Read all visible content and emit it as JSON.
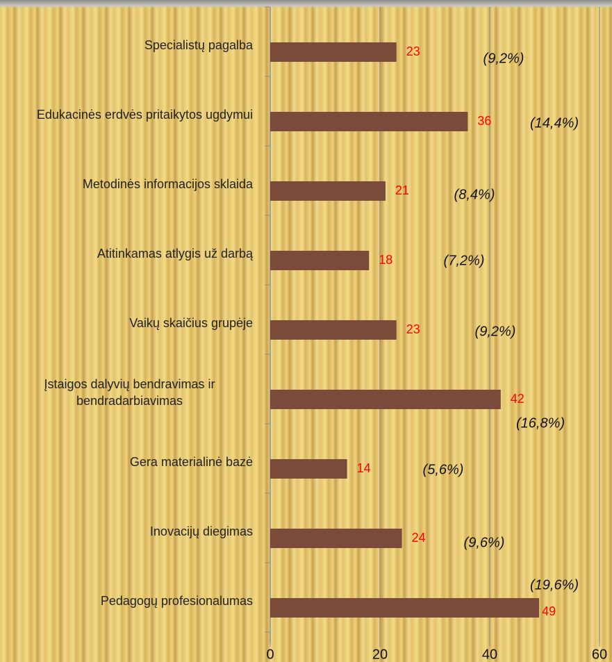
{
  "chart_data": {
    "type": "bar",
    "orientation": "horizontal",
    "categories": [
      "Specialistų pagalba",
      "Edukacinės erdvės pritaikytos ugdymui",
      "Metodinės informacijos sklaida",
      "Atitinkamas atlygis už darbą",
      "Vaikų skaičius grupėje",
      "Įstaigos dalyvių bendravimas ir bendradarbiavimas",
      "Gera materialinė bazė",
      "Inovacijų diegimas",
      "Pedagogų profesionalumas"
    ],
    "values": [
      23,
      36,
      21,
      18,
      23,
      42,
      14,
      24,
      49
    ],
    "percent_labels": [
      "(9,2%)",
      "(14,4%)",
      "(8,4%)",
      "(7,2%)",
      "(9,2%)",
      "(16,8%)",
      "(5,6%)",
      "(9,6%)",
      "(19,6%)"
    ],
    "color": "#7a4a3b",
    "xlim": [
      0,
      60
    ],
    "xticks": [
      0,
      20,
      40,
      60
    ],
    "grid": true
  }
}
